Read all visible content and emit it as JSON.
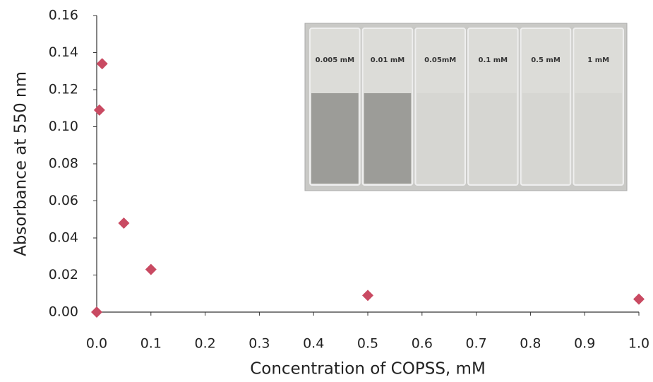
{
  "chart_data": {
    "type": "scatter",
    "y_label": "Absorbance at 550 nm",
    "x_label": "Concentration of COPSS, mM",
    "x": [
      0,
      0.005,
      0.01,
      0.05,
      0.1,
      0.5,
      1.0
    ],
    "values": [
      0.0,
      0.109,
      0.134,
      0.048,
      0.023,
      0.009,
      0.007
    ],
    "color": "#c94a62",
    "xlim": [
      0,
      1.0
    ],
    "xticks": [
      {
        "value": 0,
        "label": "0.0"
      },
      0.1,
      0.2,
      0.3,
      0.4,
      0.5,
      0.6,
      0.7,
      0.8,
      0.9,
      {
        "value": 1,
        "label": "1.0"
      }
    ],
    "ylim": [
      0,
      0.16
    ],
    "yticks": [
      {
        "value": 0,
        "label": "0.00"
      },
      0.02,
      0.04,
      0.06,
      0.08,
      {
        "value": 0.1,
        "label": "0.10"
      },
      0.12,
      0.14,
      0.16
    ],
    "grid": false,
    "inset_labels": [
      "0.005 mM",
      "0.01 mM",
      "0.05mM",
      "0.1 mM",
      "0.5 mM",
      "1 mM"
    ]
  }
}
